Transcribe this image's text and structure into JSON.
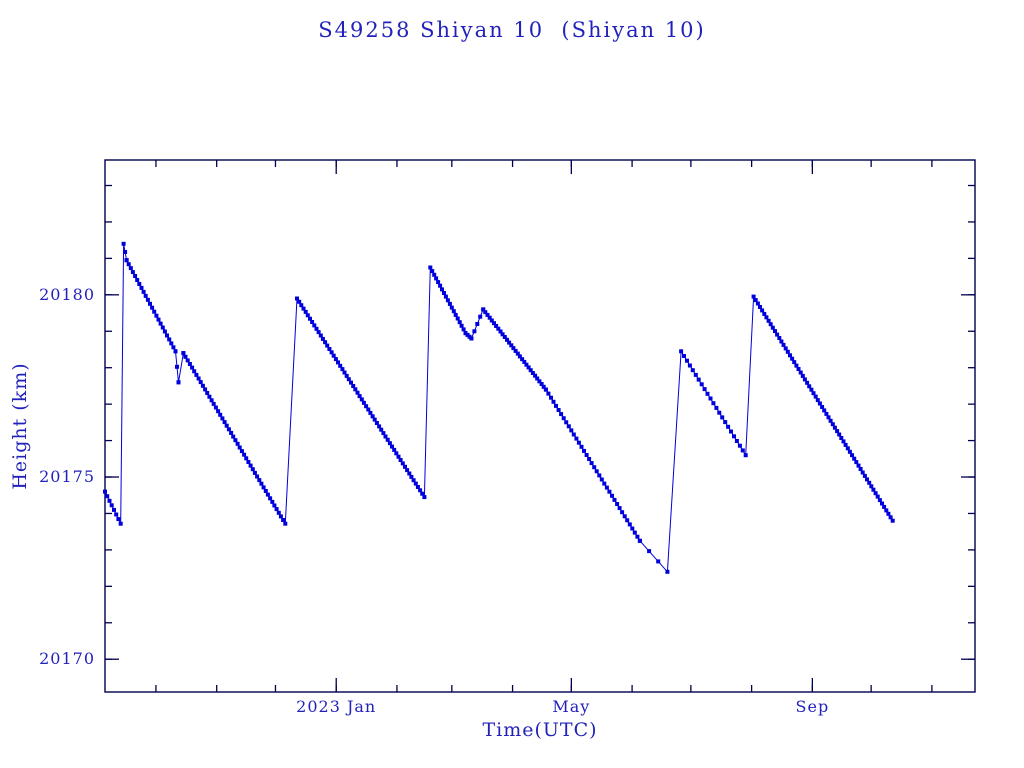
{
  "chart_data": {
    "type": "line",
    "title": "S49258 Shiyan 10  (Shiyan 10)",
    "xlabel": "Time(UTC)",
    "ylabel": "Height (km)",
    "x_unit": "days since 2022-09-05",
    "xlim": [
      0,
      444
    ],
    "ylim": [
      20169.1,
      20183.7
    ],
    "xticks_major": [
      {
        "t": 118,
        "label": "2023 Jan"
      },
      {
        "t": 238,
        "label": "May"
      },
      {
        "t": 361,
        "label": "Sep"
      }
    ],
    "xticks_minor": [
      26,
      57,
      87,
      118,
      149,
      177,
      208,
      238,
      269,
      299,
      330,
      361,
      391,
      422
    ],
    "yticks_major": [
      {
        "v": 20170,
        "label": "20170"
      },
      {
        "v": 20175,
        "label": "20175"
      },
      {
        "v": 20180,
        "label": "20180"
      }
    ],
    "yticks_minor": [
      20170,
      20171,
      20172,
      20173,
      20174,
      20175,
      20176,
      20177,
      20178,
      20179,
      20180,
      20181,
      20182,
      20183
    ],
    "colors": {
      "data": "#0000dd",
      "text": "#2222bb",
      "frame": "#000050"
    },
    "marker": "square",
    "marker_size_px": 4,
    "legend": "none",
    "grid": "off",
    "segments": [
      {
        "points": [
          [
            0,
            20174.6
          ],
          [
            8,
            20173.72
          ]
        ],
        "markers_every_days": 1.2
      },
      {
        "points": [
          [
            8,
            20173.72
          ],
          [
            9.5,
            20181.4
          ]
        ],
        "markers_every_days": 0
      },
      {
        "points": [
          [
            9.5,
            20181.4
          ],
          [
            11,
            20180.95
          ]
        ],
        "markers_every_days": 0.8
      },
      {
        "points": [
          [
            11,
            20180.95
          ],
          [
            36,
            20178.45
          ]
        ],
        "markers_every_days": 1.1
      },
      {
        "points": [
          [
            36,
            20178.45
          ],
          [
            37.5,
            20177.6
          ]
        ],
        "markers_every_days": 0.8
      },
      {
        "points": [
          [
            37.5,
            20177.6
          ],
          [
            40,
            20178.4
          ]
        ],
        "markers_every_days": 2.5
      },
      {
        "points": [
          [
            40,
            20178.4
          ],
          [
            92,
            20173.72
          ]
        ],
        "markers_every_days": 1.1
      },
      {
        "points": [
          [
            92,
            20173.72
          ],
          [
            98,
            20179.9
          ]
        ],
        "markers_every_days": 0
      },
      {
        "points": [
          [
            98,
            20179.9
          ],
          [
            163,
            20174.45
          ]
        ],
        "markers_every_days": 1.1
      },
      {
        "points": [
          [
            163,
            20174.45
          ],
          [
            166,
            20180.75
          ]
        ],
        "markers_every_days": 0
      },
      {
        "points": [
          [
            166,
            20180.75
          ],
          [
            184,
            20178.95
          ]
        ],
        "markers_every_days": 1.0
      },
      {
        "points": [
          [
            184,
            20178.95
          ],
          [
            187,
            20178.8
          ]
        ],
        "markers_every_days": 1.0
      },
      {
        "points": [
          [
            187,
            20178.8
          ],
          [
            193,
            20179.6
          ]
        ],
        "markers_every_days": 1.5
      },
      {
        "points": [
          [
            193,
            20179.6
          ],
          [
            225,
            20177.4
          ]
        ],
        "markers_every_days": 1.1
      },
      {
        "points": [
          [
            225,
            20177.4
          ],
          [
            273,
            20173.25
          ]
        ],
        "markers_every_days": 1.3
      },
      {
        "points": [
          [
            273,
            20173.25
          ],
          [
            287,
            20172.4
          ]
        ],
        "markers_every_days": 4.5
      },
      {
        "points": [
          [
            287,
            20172.4
          ],
          [
            294,
            20178.45
          ]
        ],
        "markers_every_days": 0
      },
      {
        "points": [
          [
            294,
            20178.45
          ],
          [
            327,
            20175.6
          ]
        ],
        "markers_every_days": 1.5
      },
      {
        "points": [
          [
            327,
            20175.6
          ],
          [
            331,
            20179.95
          ]
        ],
        "markers_every_days": 0
      },
      {
        "points": [
          [
            331,
            20179.95
          ],
          [
            402,
            20173.8
          ]
        ],
        "markers_every_days": 1.1
      }
    ]
  }
}
